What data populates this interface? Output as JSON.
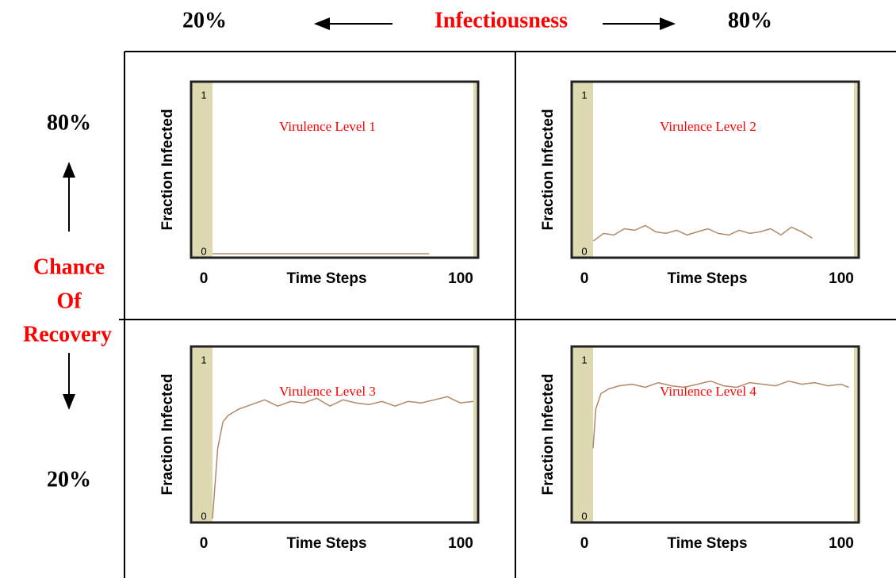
{
  "header": {
    "left": "20%",
    "title": "Infectiousness",
    "right": "80%"
  },
  "side": {
    "top": "80%",
    "title": [
      "Chance",
      "Of",
      "Recovery"
    ],
    "bottom": "20%"
  },
  "chart_data": [
    {
      "type": "line",
      "annotation": "Virulence Level 1",
      "xlabel": "Time Steps",
      "ylabel": "Fraction Infected",
      "xlim": [
        0,
        100
      ],
      "ylim": [
        0,
        1
      ],
      "xticks": [
        0,
        100
      ],
      "yticks": [
        0,
        1
      ],
      "color": "#b08a68",
      "x": [
        0,
        10,
        20,
        30,
        40,
        50,
        60,
        70,
        83
      ],
      "values": [
        0,
        0,
        0,
        0,
        0,
        0,
        0,
        0,
        0
      ]
    },
    {
      "type": "line",
      "annotation": "Virulence Level 2",
      "xlabel": "Time Steps",
      "ylabel": "Fraction Infected",
      "xlim": [
        0,
        100
      ],
      "ylim": [
        0,
        1
      ],
      "xticks": [
        0,
        100
      ],
      "yticks": [
        0,
        1
      ],
      "color": "#b08a68",
      "x": [
        0,
        4,
        8,
        12,
        16,
        20,
        24,
        28,
        32,
        36,
        40,
        44,
        48,
        52,
        56,
        60,
        64,
        68,
        72,
        76,
        80,
        84
      ],
      "values": [
        0.08,
        0.13,
        0.12,
        0.16,
        0.15,
        0.18,
        0.14,
        0.13,
        0.15,
        0.12,
        0.14,
        0.16,
        0.13,
        0.12,
        0.15,
        0.13,
        0.14,
        0.16,
        0.12,
        0.17,
        0.14,
        0.1
      ]
    },
    {
      "type": "line",
      "annotation": "Virulence Level 3",
      "xlabel": "Time Steps",
      "ylabel": "Fraction Infected",
      "xlim": [
        0,
        100
      ],
      "ylim": [
        0,
        1
      ],
      "xticks": [
        0,
        100
      ],
      "yticks": [
        0,
        1
      ],
      "color": "#b08a68",
      "x": [
        0,
        2,
        4,
        6,
        10,
        15,
        20,
        25,
        30,
        35,
        40,
        45,
        50,
        55,
        60,
        65,
        70,
        75,
        80,
        85,
        90,
        95,
        100
      ],
      "values": [
        0,
        0.45,
        0.62,
        0.66,
        0.7,
        0.73,
        0.76,
        0.72,
        0.75,
        0.74,
        0.77,
        0.72,
        0.76,
        0.74,
        0.73,
        0.75,
        0.72,
        0.75,
        0.74,
        0.76,
        0.78,
        0.74,
        0.75
      ]
    },
    {
      "type": "line",
      "annotation": "Virulence Level 4",
      "xlabel": "Time Steps",
      "ylabel": "Fraction Infected",
      "xlim": [
        0,
        100
      ],
      "ylim": [
        0,
        1
      ],
      "xticks": [
        0,
        100
      ],
      "yticks": [
        0,
        1
      ],
      "color": "#b08a68",
      "x": [
        0,
        1,
        3,
        6,
        10,
        15,
        20,
        25,
        30,
        35,
        40,
        45,
        50,
        55,
        60,
        65,
        70,
        75,
        80,
        85,
        90,
        95,
        98
      ],
      "values": [
        0.45,
        0.7,
        0.8,
        0.83,
        0.85,
        0.86,
        0.84,
        0.87,
        0.85,
        0.84,
        0.86,
        0.88,
        0.85,
        0.84,
        0.87,
        0.86,
        0.85,
        0.88,
        0.86,
        0.87,
        0.85,
        0.86,
        0.84
      ]
    }
  ]
}
